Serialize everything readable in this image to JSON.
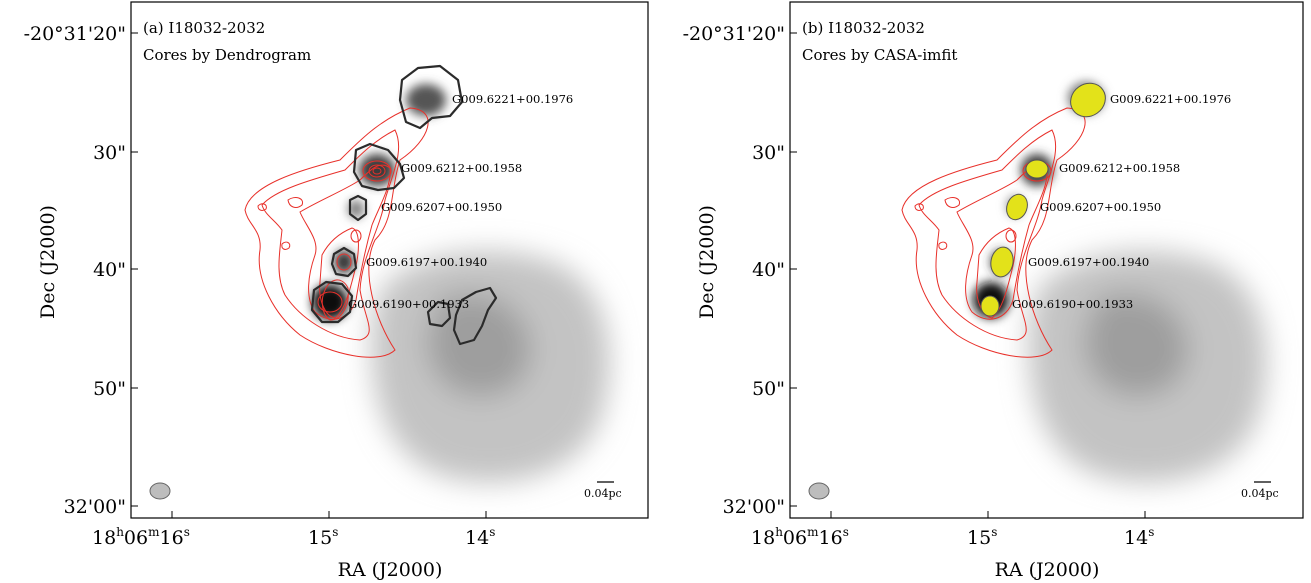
{
  "panels": [
    {
      "id": "a",
      "title": "(a) I18032-2032",
      "subtitle": "Cores by Dendrogram",
      "y_ticks": [
        "-20°31'20\"",
        "30\"",
        "40\"",
        "50\"",
        "32'00\""
      ],
      "x_ticks": [
        {
          "main": "18",
          "sup1": "h",
          "mid": "06",
          "sup2": "m",
          "end": "16",
          "sup3": "s"
        },
        {
          "main": "15",
          "sup1": "s"
        },
        {
          "main": "14",
          "sup1": "s"
        }
      ],
      "xlabel": "RA (J2000)",
      "ylabel": "Dec (J2000)",
      "scale_bar": "0.04pc",
      "cores": [
        "G009.6221+00.1976",
        "G009.6212+00.1958",
        "G009.6207+00.1950",
        "G009.6197+00.1940",
        "G009.6190+00.1933"
      ]
    },
    {
      "id": "b",
      "title": "(b) I18032-2032",
      "subtitle": "Cores by CASA-imfit",
      "y_ticks": [
        "-20°31'20\"",
        "30\"",
        "40\"",
        "50\"",
        "32'00\""
      ],
      "x_ticks": [
        {
          "main": "18",
          "sup1": "h",
          "mid": "06",
          "sup2": "m",
          "end": "16",
          "sup3": "s"
        },
        {
          "main": "15",
          "sup1": "s"
        },
        {
          "main": "14",
          "sup1": "s"
        }
      ],
      "xlabel": "RA (J2000)",
      "ylabel": "Dec (J2000)",
      "scale_bar": "0.04pc",
      "cores": [
        "G009.6221+00.1976",
        "G009.6212+00.1958",
        "G009.6207+00.1950",
        "G009.6197+00.1940",
        "G009.6190+00.1933"
      ]
    }
  ],
  "colors": {
    "contour": "#e8302a",
    "dendro_outline": "#2b2b2b",
    "imfit_fill": "#e3e21a",
    "beam_fill": "#bdbdbd"
  }
}
